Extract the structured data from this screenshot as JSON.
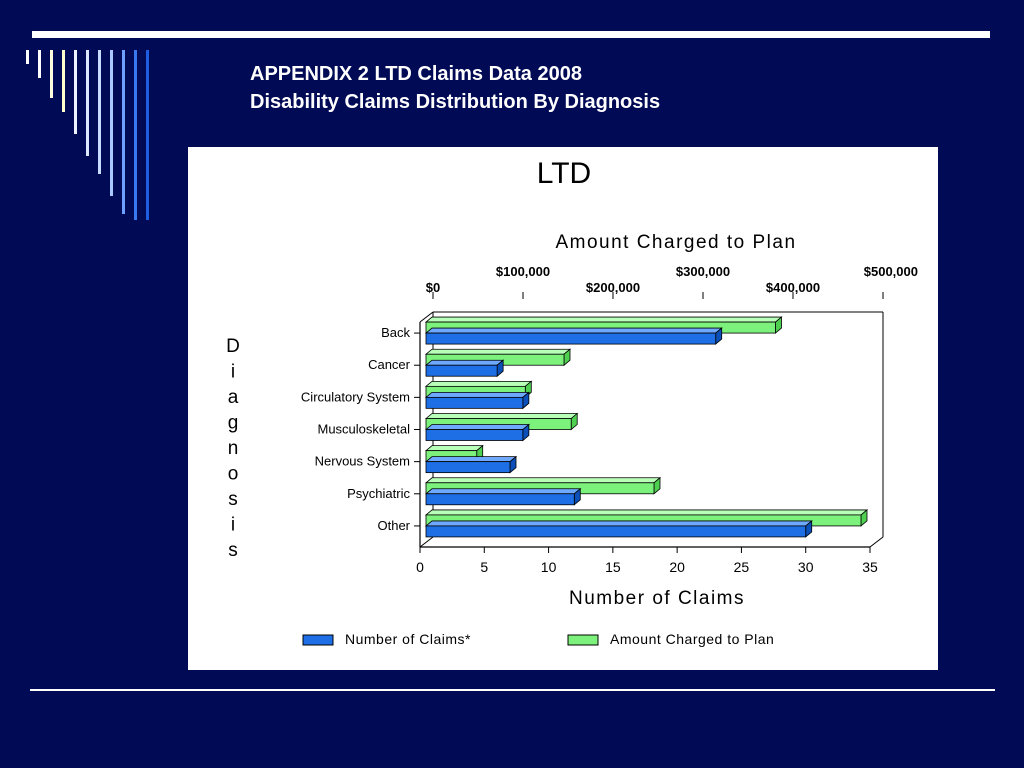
{
  "slide": {
    "title_line1": "APPENDIX 2   LTD Claims Data 2008",
    "title_line2": "Disability Claims Distribution By Diagnosis"
  },
  "colors": {
    "background": "#000a55",
    "claims_bar": "#1e6ee6",
    "amount_bar": "#7cf27c"
  },
  "chart_data": {
    "type": "bar",
    "orientation": "horizontal",
    "title": "LTD",
    "ylabel": "Diagnosis",
    "xlabel": "Number of Claims",
    "x2label": "Amount Charged to Plan",
    "categories": [
      "Back",
      "Cancer",
      "Circulatory System",
      "Musculoskeletal",
      "Nervous System",
      "Psychiatric",
      "Other"
    ],
    "series": [
      {
        "name": "Number of Claims*",
        "values": [
          23,
          6,
          8,
          8,
          7,
          12,
          30
        ]
      },
      {
        "name": "Amount Charged to Plan",
        "values": [
          395000,
          160000,
          117000,
          168000,
          63000,
          260000,
          490000
        ]
      }
    ],
    "xlim": [
      0,
      35
    ],
    "x_ticks": [
      "0",
      "5",
      "10",
      "15",
      "20",
      "25",
      "30",
      "35"
    ],
    "x2lim": [
      0,
      500000
    ],
    "x2_ticks": [
      "$0",
      "$100,000",
      "$200,000",
      "$300,000",
      "$400,000",
      "$500,000"
    ],
    "legend_position": "bottom",
    "grid": false
  }
}
